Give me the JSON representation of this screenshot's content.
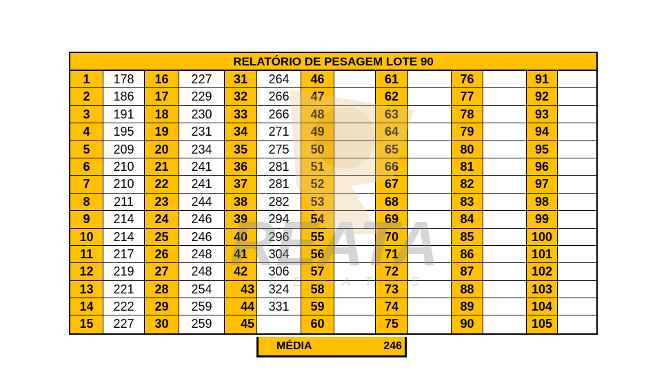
{
  "report": {
    "title": "RELATÓRIO DE PESAGEM LOTE  90",
    "colors": {
      "header": "#FFC000",
      "border": "#000000"
    },
    "columns": [
      {
        "indices": [
          "1",
          "2",
          "3",
          "4",
          "5",
          "6",
          "7",
          "8",
          "9",
          "10",
          "11",
          "12",
          "13",
          "14",
          "15"
        ],
        "values": [
          "178",
          "186",
          "191",
          "195",
          "209",
          "210",
          "210",
          "211",
          "214",
          "214",
          "217",
          "219",
          "221",
          "222",
          "227"
        ]
      },
      {
        "indices": [
          "16",
          "17",
          "18",
          "19",
          "20",
          "21",
          "22",
          "23",
          "24",
          "25",
          "26",
          "27",
          "28",
          "29",
          "30"
        ],
        "values": [
          "227",
          "229",
          "230",
          "231",
          "234",
          "241",
          "241",
          "244",
          "246",
          "246",
          "248",
          "248",
          "254",
          "259",
          "259"
        ]
      },
      {
        "indices": [
          "31",
          "32",
          "33",
          "34",
          "35",
          "36",
          "37",
          "38",
          "39",
          "40",
          "41",
          "42",
          "43",
          "44",
          "45"
        ],
        "values": [
          "264",
          "266",
          "266",
          "271",
          "275",
          "281",
          "281",
          "282",
          "294",
          "296",
          "304",
          "306",
          "324",
          "331",
          ""
        ]
      },
      {
        "indices": [
          "46",
          "47",
          "48",
          "49",
          "50",
          "51",
          "52",
          "53",
          "54",
          "55",
          "56",
          "57",
          "58",
          "59",
          "60"
        ],
        "values": [
          "",
          "",
          "",
          "",
          "",
          "",
          "",
          "",
          "",
          "",
          "",
          "",
          "",
          "",
          ""
        ]
      },
      {
        "indices": [
          "61",
          "62",
          "63",
          "64",
          "65",
          "66",
          "67",
          "68",
          "69",
          "70",
          "71",
          "72",
          "73",
          "74",
          "75"
        ],
        "values": [
          "",
          "",
          "",
          "",
          "",
          "",
          "",
          "",
          "",
          "",
          "",
          "",
          "",
          "",
          ""
        ]
      },
      {
        "indices": [
          "76",
          "77",
          "78",
          "79",
          "80",
          "81",
          "82",
          "83",
          "84",
          "85",
          "86",
          "87",
          "88",
          "89",
          "90"
        ],
        "values": [
          "",
          "",
          "",
          "",
          "",
          "",
          "",
          "",
          "",
          "",
          "",
          "",
          "",
          "",
          ""
        ]
      },
      {
        "indices": [
          "91",
          "92",
          "93",
          "94",
          "95",
          "96",
          "97",
          "98",
          "99",
          "100",
          "101",
          "102",
          "103",
          "104",
          "105"
        ],
        "values": [
          "",
          "",
          "",
          "",
          "",
          "",
          "",
          "",
          "",
          "",
          "",
          "",
          "",
          "",
          ""
        ]
      }
    ],
    "summary": {
      "label": "MÉDIA",
      "value": "246"
    }
  },
  "watermark": {
    "brand": "REATA",
    "tagline": "REMATES"
  }
}
